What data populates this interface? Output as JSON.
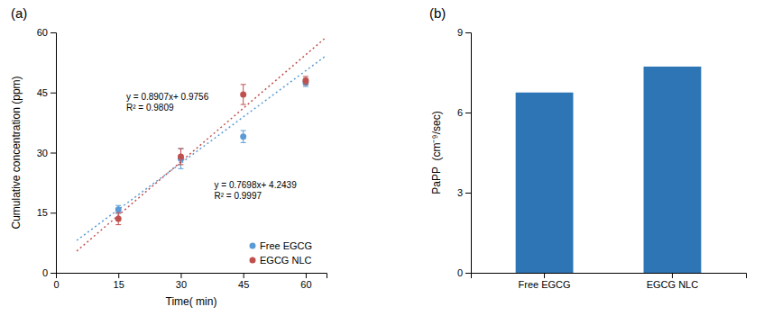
{
  "chart_data": [
    {
      "type": "scatter",
      "title": "(a)",
      "xlabel": "Time( min)",
      "ylabel": "Cumulative concentration (ppm)",
      "xlim": [
        0,
        65
      ],
      "ylim": [
        0,
        60
      ],
      "xticks": [
        0,
        15,
        30,
        45,
        60
      ],
      "yticks": [
        0,
        15,
        30,
        45,
        60
      ],
      "grid": false,
      "legend": "lower right",
      "series": [
        {
          "name": "Free EGCG",
          "type": "scatter",
          "marker": "circle",
          "color": "#5B9BD5",
          "x": [
            15,
            30,
            45,
            60
          ],
          "values": [
            15.8,
            28.5,
            34.0,
            47.5
          ],
          "errors": [
            1.0,
            2.5,
            1.5,
            1.0
          ]
        },
        {
          "name": "EGCG NLC",
          "type": "scatter",
          "marker": "circle",
          "color": "#C0504D",
          "x": [
            15,
            30,
            45,
            60
          ],
          "values": [
            13.5,
            29.0,
            44.5,
            48.0
          ],
          "errors": [
            1.5,
            2.0,
            2.5,
            1.0
          ]
        },
        {
          "type": "line",
          "line_style": "dotted",
          "color": "#5B9BD5",
          "x": [
            5,
            65
          ],
          "values": [
            8.0929,
            54.2809
          ]
        },
        {
          "type": "line",
          "line_style": "dotted",
          "color": "#C0504D",
          "x": [
            5,
            65
          ],
          "values": [
            5.4291,
            58.8711
          ]
        }
      ],
      "annotations": [
        [
          "y = 0.8907x+ 0.9756",
          "R² = 0.9809"
        ],
        [
          "y = 0.7698x+ 4.2439",
          "R² = 0.9997"
        ]
      ]
    },
    {
      "type": "bar",
      "title": "(b)",
      "ylabel": "PaPP  (cm⁻⁹/sec)",
      "categories": [
        "Free EGCG",
        "EGCG NLC"
      ],
      "values": [
        6.75,
        7.72
      ],
      "color": "#2E75B6",
      "ylim": [
        0,
        9
      ],
      "yticks": [
        0,
        3,
        6,
        9
      ],
      "grid": false
    }
  ]
}
